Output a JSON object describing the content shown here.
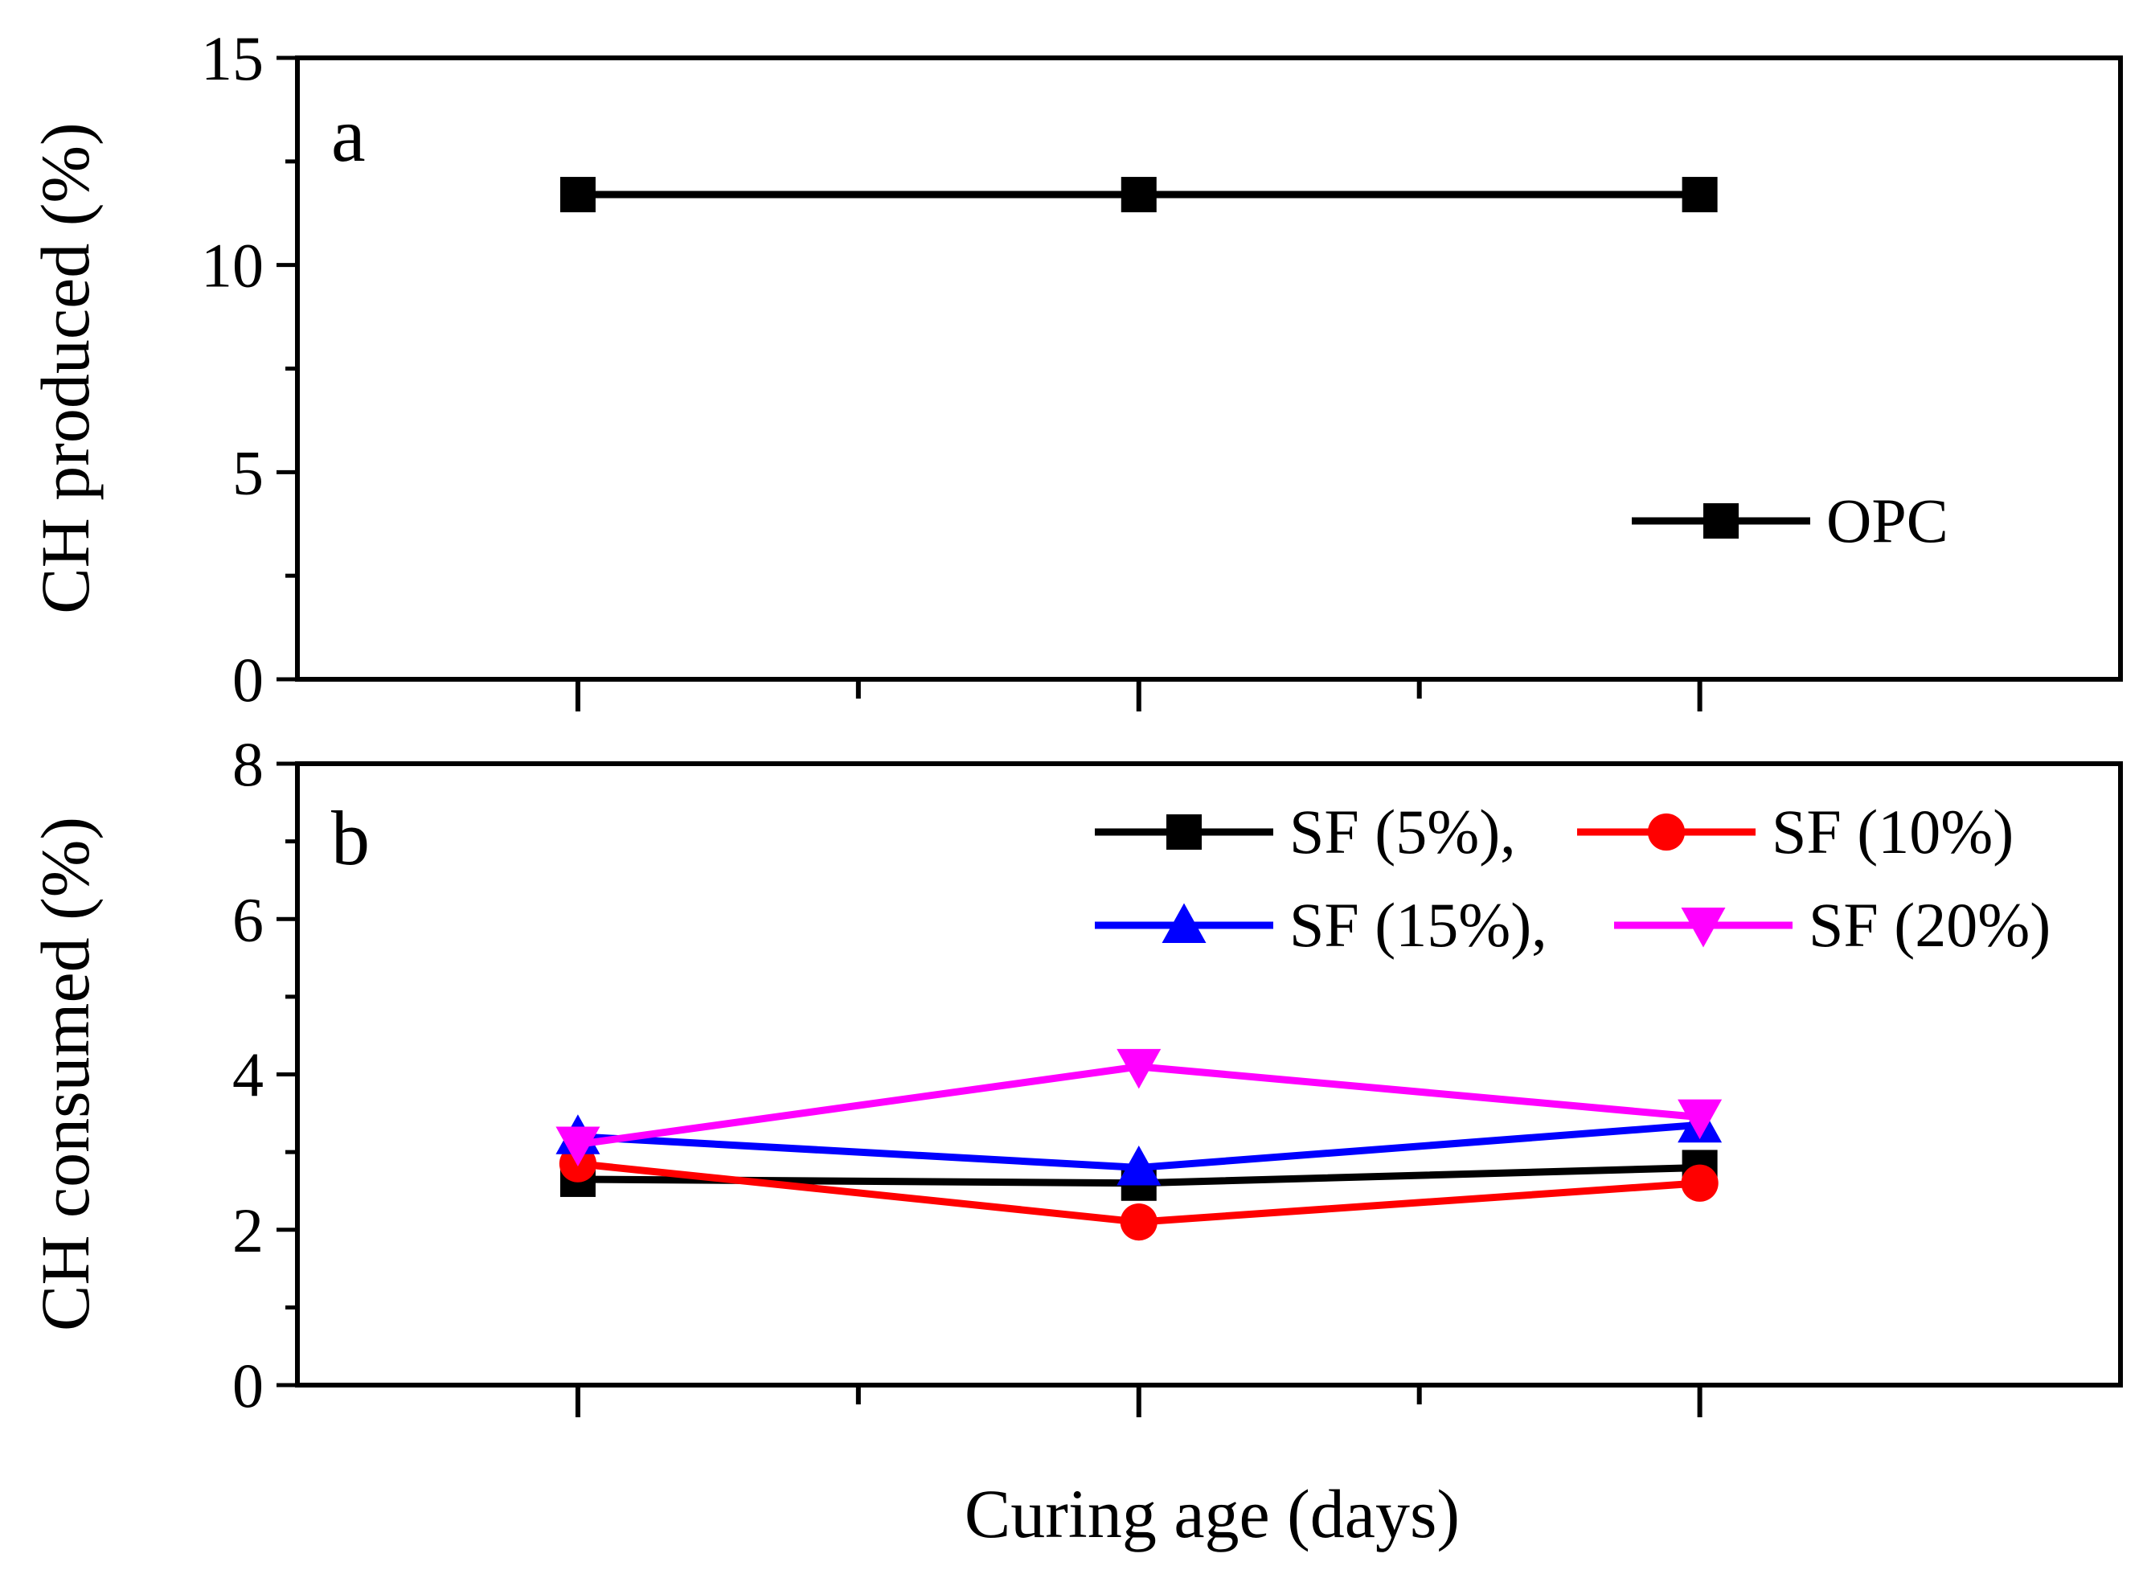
{
  "chart_data": [
    {
      "panel": "a",
      "type": "line",
      "ylabel": "CH produced (%)",
      "ylim": [
        0,
        15
      ],
      "yticks": [
        "0",
        "5",
        "10",
        "15"
      ],
      "x": [
        1,
        2,
        3
      ],
      "series": [
        {
          "name": "OPC",
          "marker": "square",
          "color": "#000000",
          "values": [
            11.7,
            11.7,
            11.7
          ]
        }
      ],
      "legend_position": "bottom-right"
    },
    {
      "panel": "b",
      "type": "line",
      "ylabel": "CH consumed (%)",
      "ylim": [
        0,
        8
      ],
      "yticks": [
        "0",
        "2",
        "4",
        "6",
        "8"
      ],
      "x": [
        1,
        2,
        3
      ],
      "series": [
        {
          "name": "SF (5%),",
          "marker": "square",
          "color": "#000000",
          "values": [
            2.65,
            2.6,
            2.8
          ]
        },
        {
          "name": "SF (10%)",
          "marker": "circle",
          "color": "#ff0000",
          "values": [
            2.85,
            2.1,
            2.6
          ]
        },
        {
          "name": "SF (15%),",
          "marker": "triangle-up",
          "color": "#0000ff",
          "values": [
            3.2,
            2.8,
            3.35
          ]
        },
        {
          "name": "SF (20%)",
          "marker": "triangle-down",
          "color": "#ff00ff",
          "values": [
            3.1,
            4.1,
            3.45
          ]
        }
      ],
      "legend_position": "top-right"
    }
  ],
  "xlabel": "Curing age (days)",
  "xlim": [
    0.5,
    3.75
  ]
}
